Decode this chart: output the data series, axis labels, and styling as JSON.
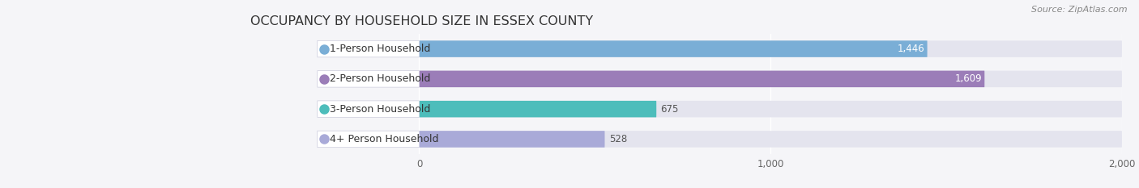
{
  "title": "OCCUPANCY BY HOUSEHOLD SIZE IN ESSEX COUNTY",
  "source": "Source: ZipAtlas.com",
  "categories": [
    "1-Person Household",
    "2-Person Household",
    "3-Person Household",
    "4+ Person Household"
  ],
  "values": [
    1446,
    1609,
    675,
    528
  ],
  "bar_colors": [
    "#7aaed6",
    "#9b7db8",
    "#4dbdbb",
    "#a9aad8"
  ],
  "label_colors": [
    "white",
    "white",
    "black",
    "black"
  ],
  "data_max": 2000,
  "xlim_left": -480,
  "xlim_right": 2000,
  "xticks": [
    0,
    1000,
    2000
  ],
  "background_color": "#f5f5f8",
  "bar_background_color": "#e4e4ee",
  "label_bg_color": "#ffffff",
  "title_fontsize": 11.5,
  "source_fontsize": 8,
  "label_fontsize": 9,
  "value_fontsize": 8.5,
  "bar_height": 0.55,
  "bar_gap": 0.15
}
